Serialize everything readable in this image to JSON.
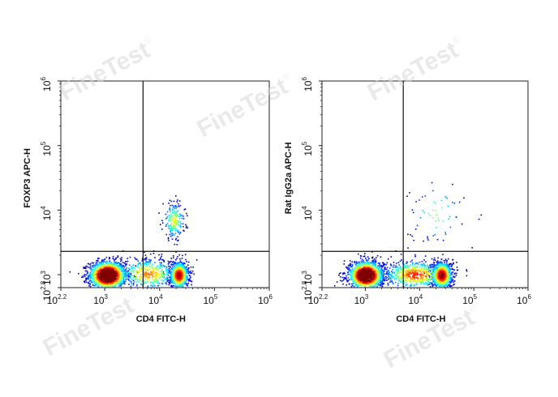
{
  "watermark": {
    "text": "FineTest",
    "mark": "®"
  },
  "chart_data": [
    {
      "type": "scatter",
      "xlabel": "CD4 FITC-H",
      "ylabel": "FOXP3 APC-H",
      "x_scale": "log",
      "y_scale": "log",
      "xlim": [
        158.5,
        1000000
      ],
      "ylim": [
        631,
        1000000
      ],
      "x_ticks": [
        {
          "base": "10",
          "exp": "2.2"
        },
        {
          "base": "10",
          "exp": "3"
        },
        {
          "base": "10",
          "exp": "4"
        },
        {
          "base": "10",
          "exp": "5"
        },
        {
          "base": "10",
          "exp": "6"
        }
      ],
      "y_ticks": [
        {
          "base": "10",
          "exp": "2.8"
        },
        {
          "base": "10",
          "exp": "3"
        },
        {
          "base": "10",
          "exp": "4"
        },
        {
          "base": "10",
          "exp": "5"
        },
        {
          "base": "10",
          "exp": "6"
        }
      ],
      "quadrant_gate": {
        "x": 5000,
        "y": 2300
      },
      "density_coloring": "jet",
      "clusters": [
        {
          "x": 1100,
          "y": 1000,
          "spread_x": 0.17,
          "spread_y": 0.11,
          "weight": 0.52
        },
        {
          "x": 22000,
          "y": 1000,
          "spread_x": 0.09,
          "spread_y": 0.11,
          "weight": 0.26
        },
        {
          "x": 18000,
          "y": 7000,
          "spread_x": 0.1,
          "spread_y": 0.15,
          "weight": 0.07
        },
        {
          "x": 6000,
          "y": 1050,
          "spread_x": 0.28,
          "spread_y": 0.12,
          "weight": 0.15
        }
      ]
    },
    {
      "type": "scatter",
      "xlabel": "CD4 FITC-H",
      "ylabel": "Rat IgG2a APC-H",
      "x_scale": "log",
      "y_scale": "log",
      "xlim": [
        158.5,
        1000000
      ],
      "ylim": [
        631,
        1000000
      ],
      "x_ticks": [
        {
          "base": "10",
          "exp": "2.2"
        },
        {
          "base": "10",
          "exp": "3"
        },
        {
          "base": "10",
          "exp": "4"
        },
        {
          "base": "10",
          "exp": "5"
        },
        {
          "base": "10",
          "exp": "6"
        }
      ],
      "y_ticks": [
        {
          "base": "10",
          "exp": "2.8"
        },
        {
          "base": "10",
          "exp": "3"
        },
        {
          "base": "10",
          "exp": "4"
        },
        {
          "base": "10",
          "exp": "5"
        },
        {
          "base": "10",
          "exp": "6"
        }
      ],
      "quadrant_gate": {
        "x": 5000,
        "y": 2300
      },
      "density_coloring": "jet",
      "clusters": [
        {
          "x": 1000,
          "y": 1000,
          "spread_x": 0.16,
          "spread_y": 0.11,
          "weight": 0.5
        },
        {
          "x": 25000,
          "y": 1000,
          "spread_x": 0.1,
          "spread_y": 0.11,
          "weight": 0.28
        },
        {
          "x": 8000,
          "y": 1020,
          "spread_x": 0.3,
          "spread_y": 0.11,
          "weight": 0.2
        },
        {
          "x": 20000,
          "y": 9000,
          "spread_x": 0.25,
          "spread_y": 0.25,
          "weight": 0.02
        }
      ]
    }
  ]
}
